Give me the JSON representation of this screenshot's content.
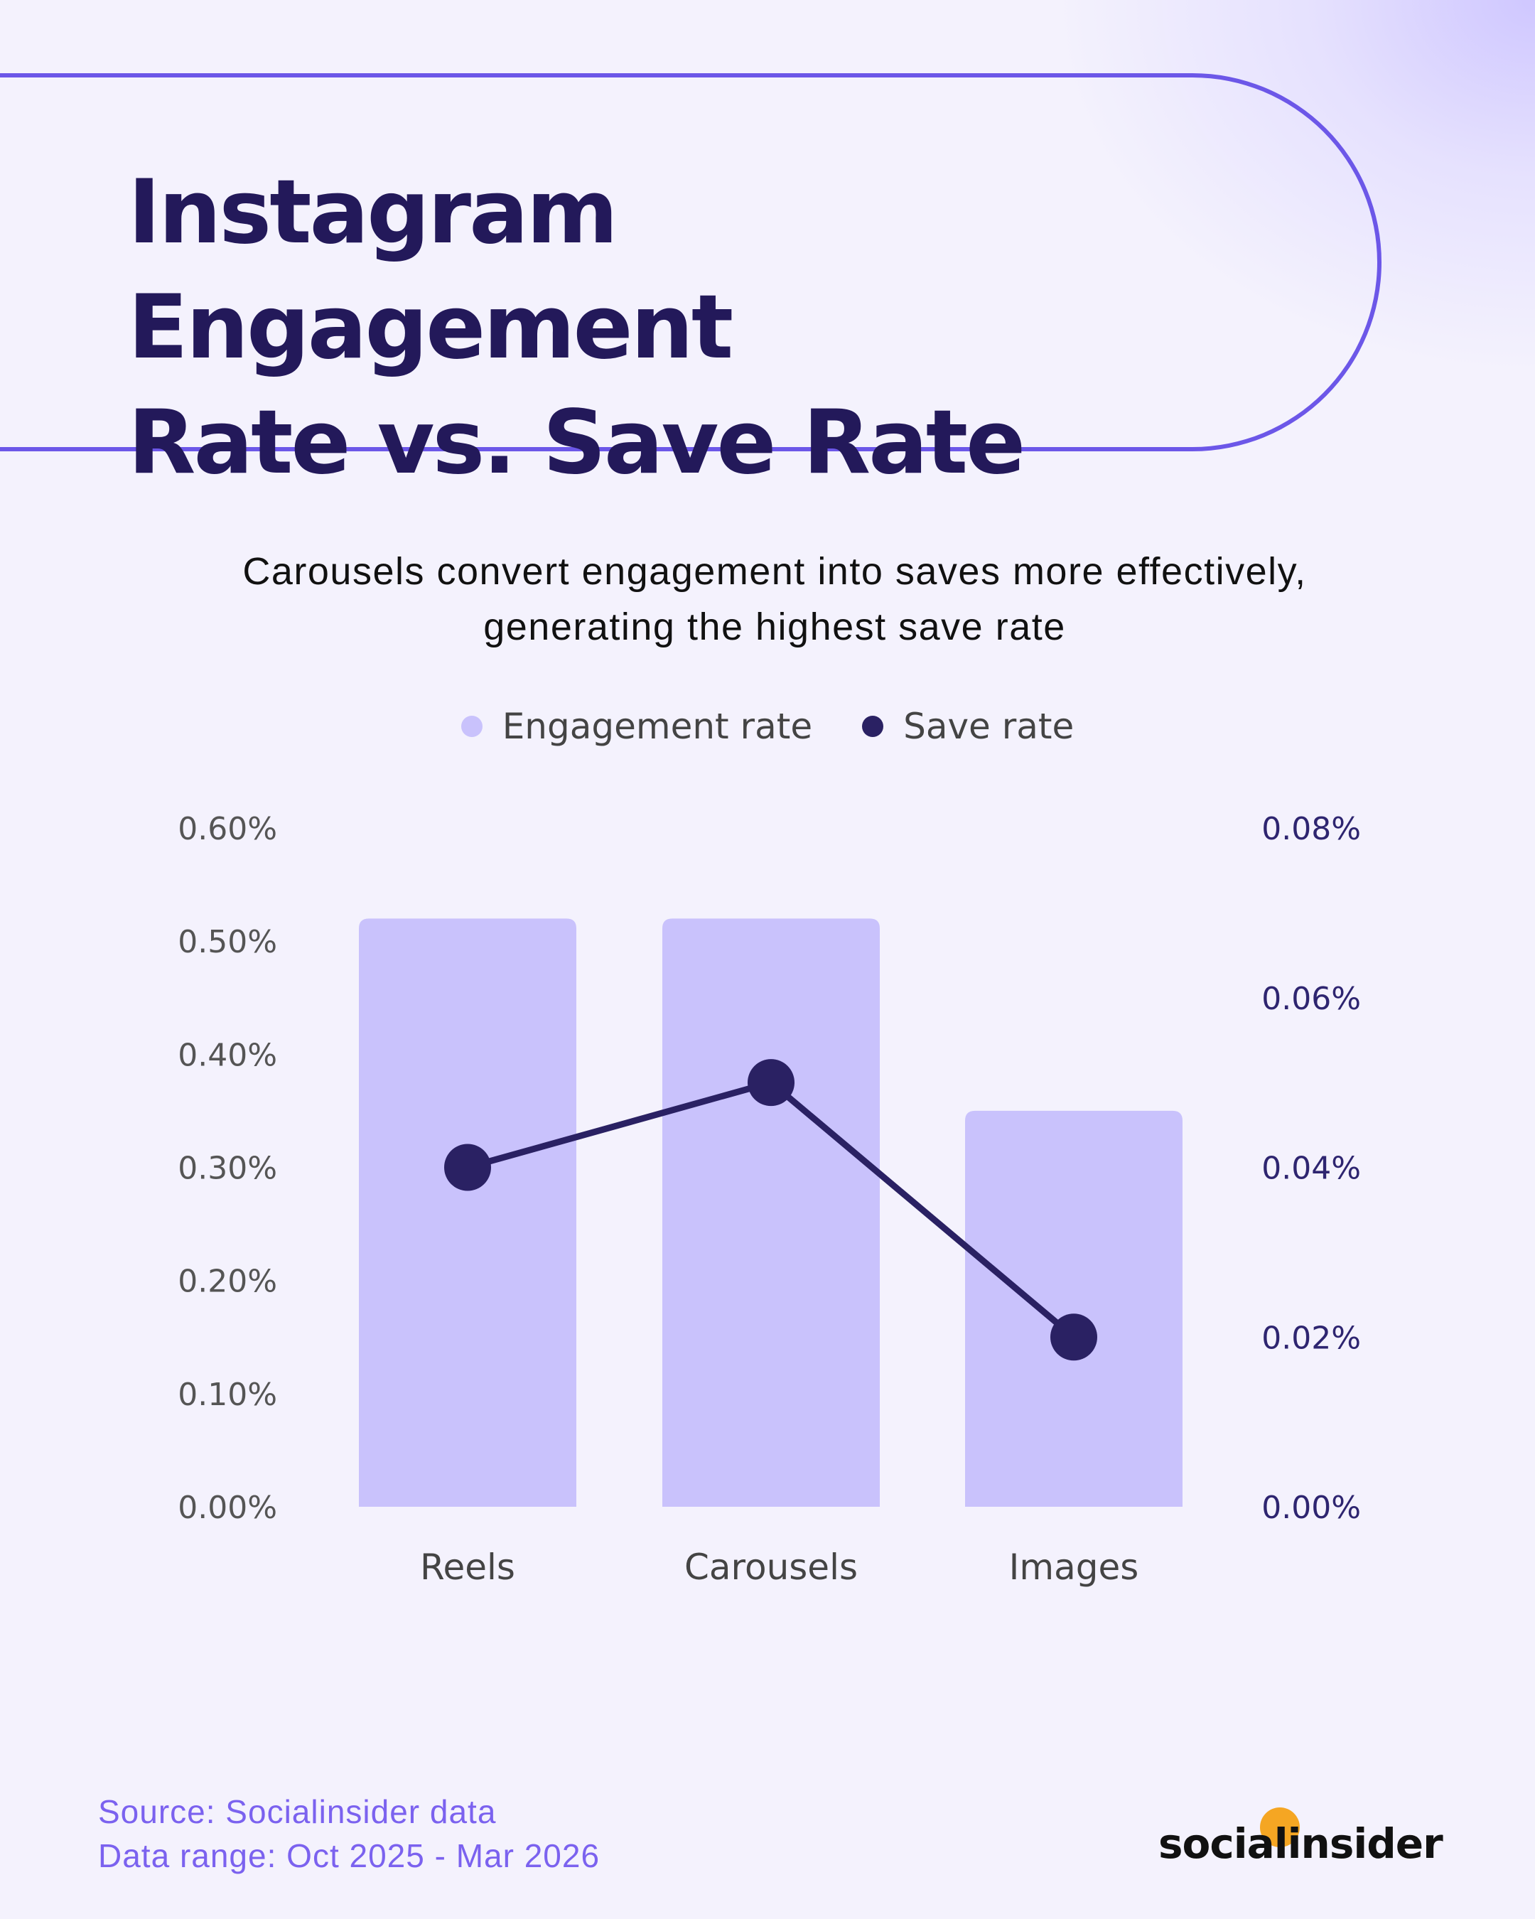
{
  "header": {
    "title_line1": "Instagram Engagement",
    "title_line2": "Rate vs. Save Rate"
  },
  "subtitle": {
    "line1": "Carousels convert engagement into saves more effectively,",
    "line2": "generating the highest save rate"
  },
  "legend": [
    {
      "label": "Engagement rate",
      "color": "#c9c2fc"
    },
    {
      "label": "Save rate",
      "color": "#2a2163"
    }
  ],
  "chart_data": {
    "type": "bar",
    "categories": [
      "Reels",
      "Carousels",
      "Images"
    ],
    "series": [
      {
        "name": "Engagement rate",
        "type": "bar",
        "axis": "left",
        "values": [
          0.52,
          0.52,
          0.35
        ],
        "color": "#c9c2fc"
      },
      {
        "name": "Save rate",
        "type": "line",
        "axis": "right",
        "values": [
          0.04,
          0.05,
          0.02
        ],
        "color": "#2a2163"
      }
    ],
    "left_axis": {
      "ticks": [
        "0.00%",
        "0.10%",
        "0.20%",
        "0.30%",
        "0.40%",
        "0.50%",
        "0.60%"
      ],
      "range": [
        0,
        0.6
      ]
    },
    "right_axis": {
      "ticks": [
        "0.00%",
        "0.02%",
        "0.04%",
        "0.06%",
        "0.08%"
      ],
      "range": [
        0,
        0.08
      ]
    },
    "grid": false,
    "legend_position": "top-center"
  },
  "footer": {
    "source": "Source: Socialinsider data",
    "range": "Data range: Oct 2025 - Mar 2026"
  },
  "logo": {
    "text": "socialinsider",
    "accent_color": "#f5a623"
  }
}
